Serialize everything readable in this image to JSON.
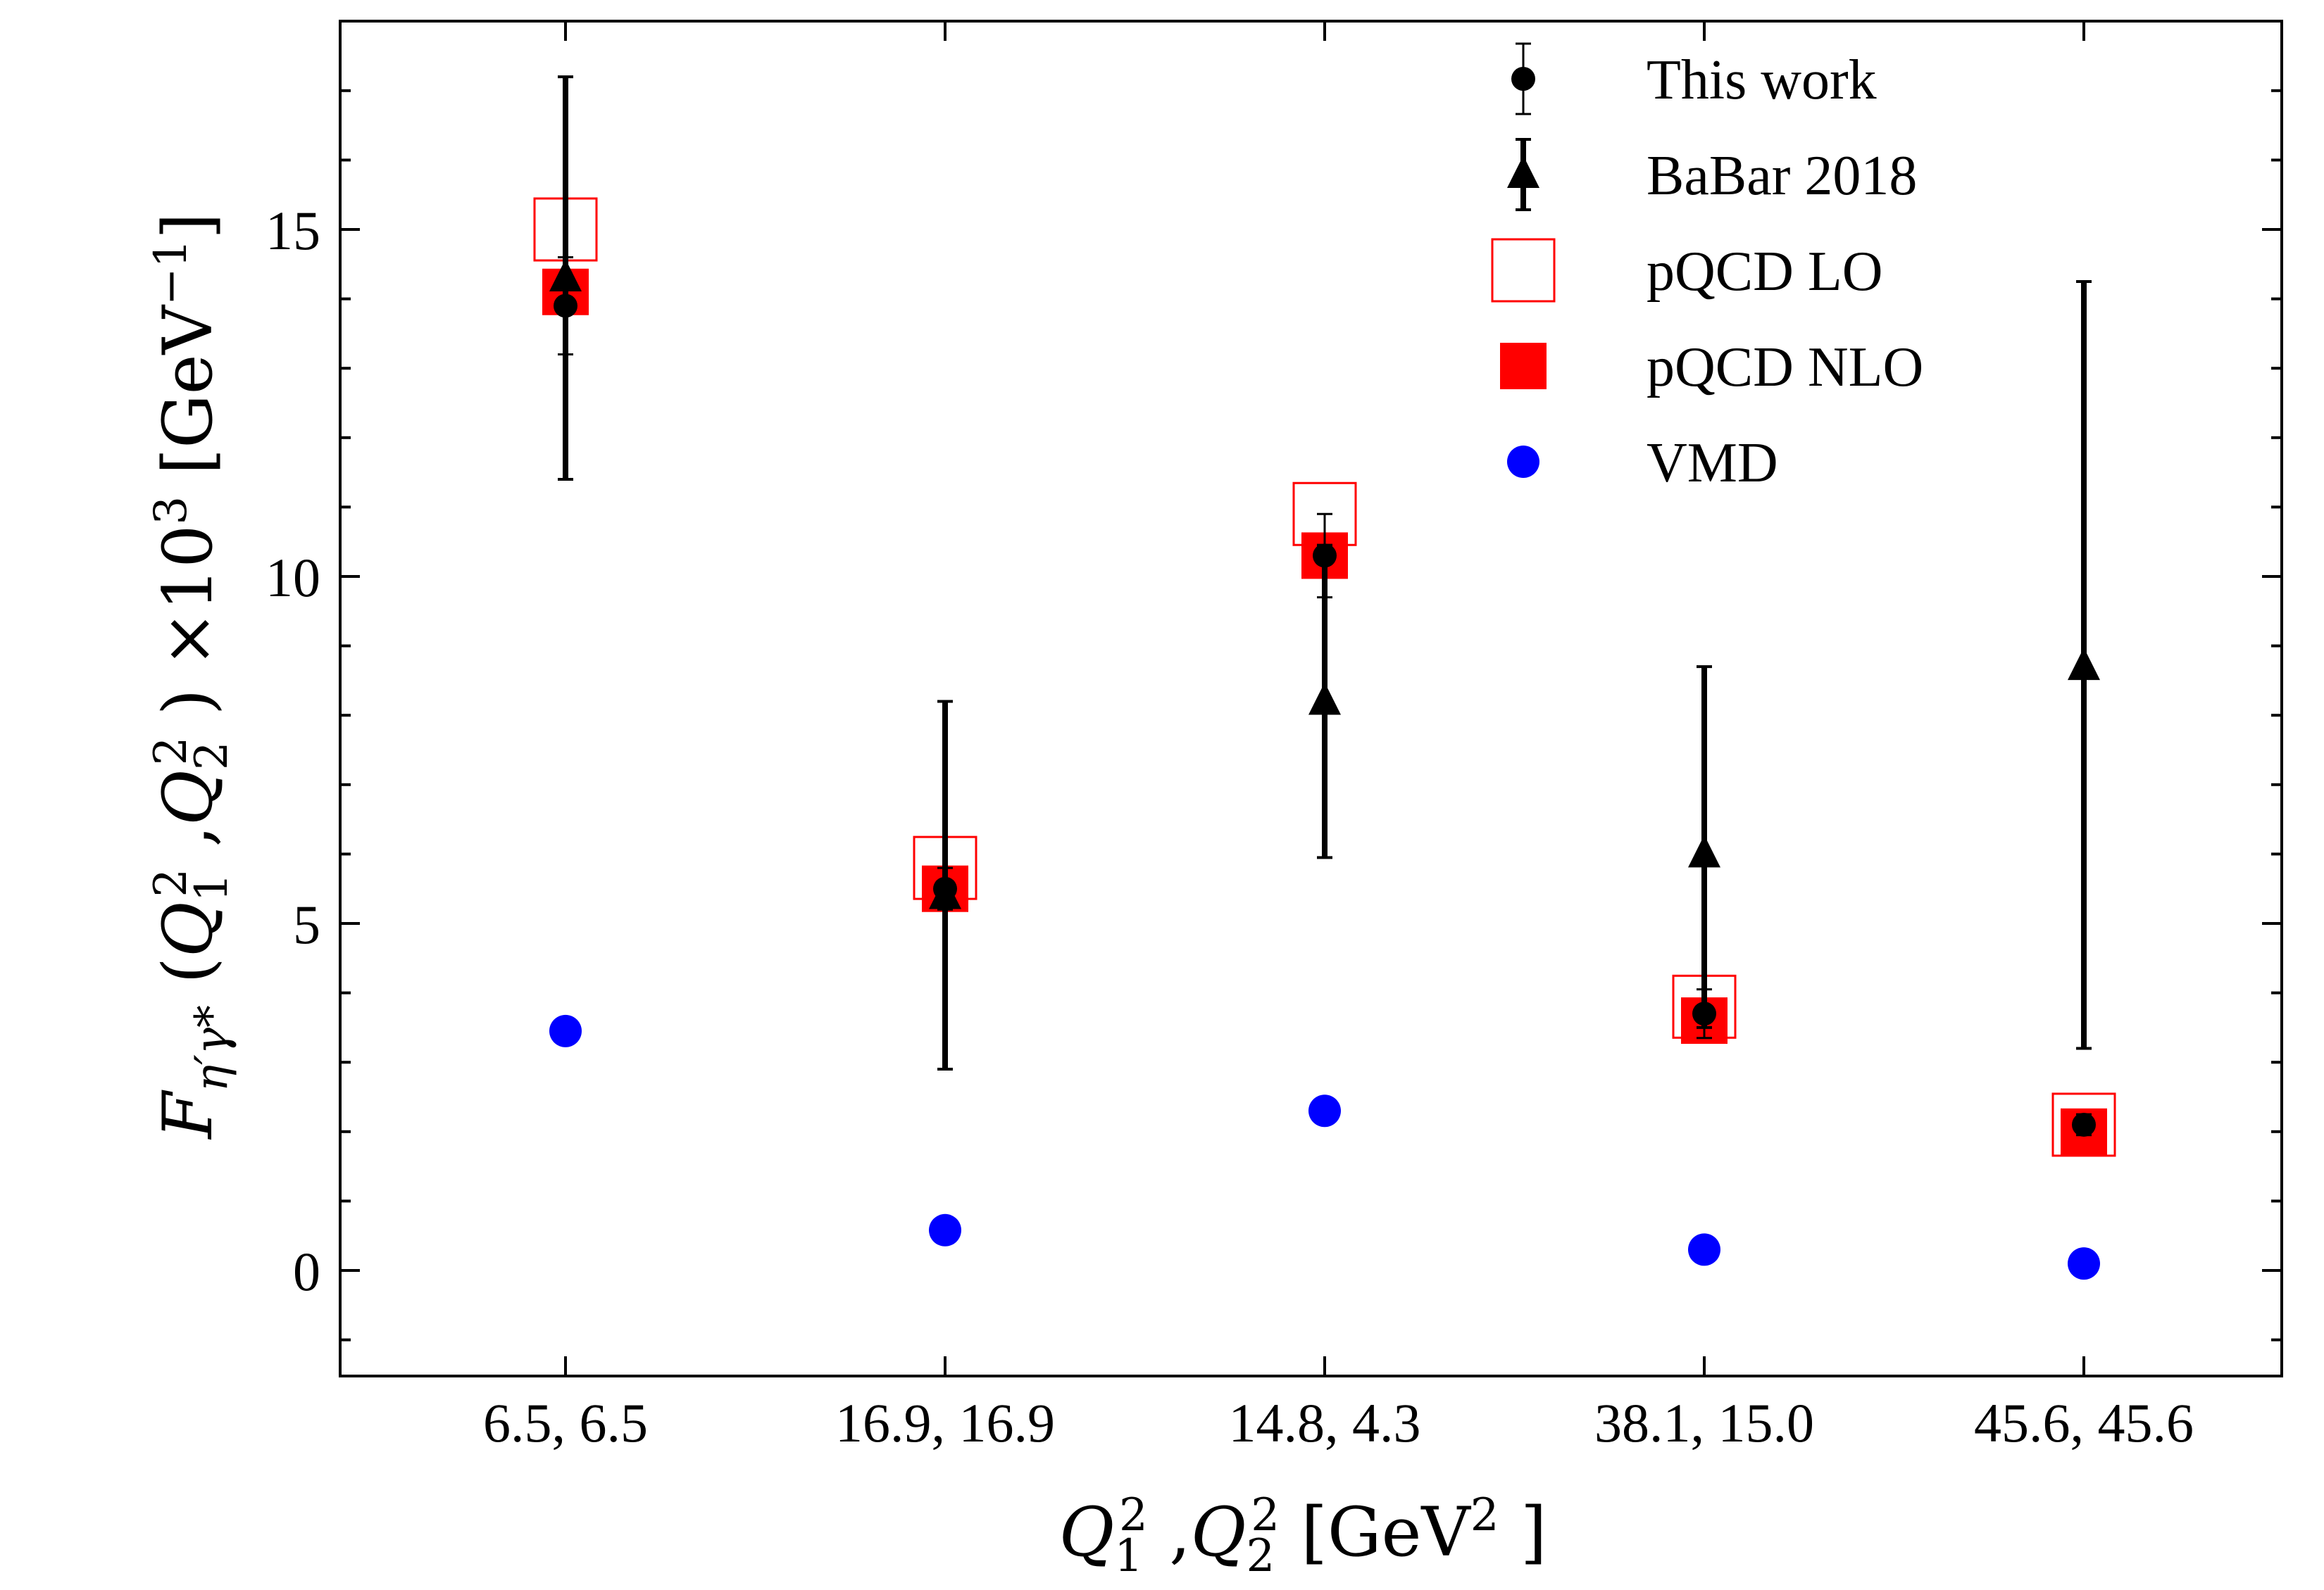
{
  "chart_data": {
    "type": "scatter",
    "categories": [
      "6.5, 6.5",
      "16.9, 16.9",
      "14.8, 4.3",
      "38.1, 15.0",
      "45.6, 45.6"
    ],
    "xlabel": "Q₁², Q₂² [GeV²]",
    "ylabel": "F_η′γ*(Q₁², Q₂²) ×10³ [GeV⁻¹]",
    "ylim": [
      -1.5,
      17.8
    ],
    "yticks": [
      0,
      5,
      10,
      15
    ],
    "ytick_labels": [
      "0",
      "5",
      "10",
      "15"
    ],
    "grid": false,
    "legend": "top-right",
    "series": [
      {
        "name": "This work",
        "marker": "circle",
        "color": "#000000",
        "values": [
          13.9,
          5.5,
          10.3,
          3.7,
          2.1
        ],
        "err": [
          0.7,
          0.3,
          0.6,
          0.35,
          0.15
        ]
      },
      {
        "name": "BaBar 2018",
        "marker": "triangle",
        "color": "#000000",
        "values": [
          14.3,
          5.4,
          8.2,
          6.0,
          8.7
        ],
        "err_low": [
          2.9,
          2.5,
          2.25,
          2.5,
          5.5
        ],
        "err_high": [
          2.9,
          2.8,
          2.25,
          2.7,
          5.55
        ]
      },
      {
        "name": "pQCD LO",
        "marker": "open-square",
        "color": "#ff0000",
        "values": [
          15.0,
          5.8,
          10.9,
          3.8,
          2.1
        ]
      },
      {
        "name": "pQCD NLO",
        "marker": "filled-square",
        "color": "#ff0000",
        "values": [
          14.1,
          5.5,
          10.3,
          3.6,
          2.0
        ]
      },
      {
        "name": "VMD",
        "marker": "circle",
        "color": "#0000ff",
        "values": [
          3.45,
          0.58,
          2.3,
          0.3,
          0.1
        ]
      }
    ]
  }
}
